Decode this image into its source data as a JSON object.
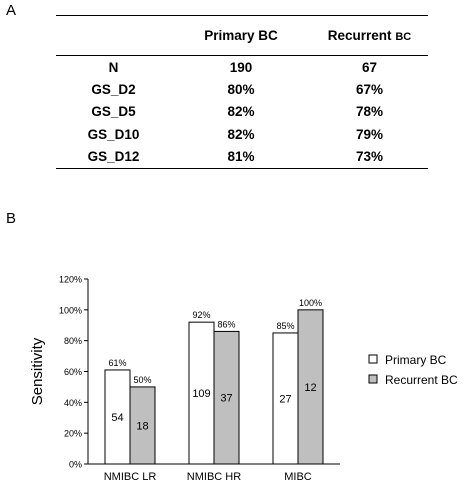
{
  "panel_a": {
    "label": "A",
    "table": {
      "columns": [
        {
          "main": "",
          "small": ""
        },
        {
          "main": "Primary BC",
          "small": ""
        },
        {
          "main": "Recurrent ",
          "small": "BC"
        }
      ],
      "rows": [
        [
          "N",
          "190",
          "67"
        ],
        [
          "GS_D2",
          "80%",
          "67%"
        ],
        [
          "GS_D5",
          "82%",
          "78%"
        ],
        [
          "GS_D10",
          "82%",
          "79%"
        ],
        [
          "GS_D12",
          "81%",
          "73%"
        ]
      ]
    }
  },
  "panel_b": {
    "label": "B"
  },
  "chart_data": {
    "type": "bar",
    "categories": [
      "NMIBC LR",
      "NMIBC HR",
      "MIBC"
    ],
    "series": [
      {
        "name": "Primary BC",
        "values": [
          61,
          92,
          85
        ],
        "value_labels": [
          "61%",
          "92%",
          "85%"
        ],
        "counts": [
          "54",
          "109",
          "27"
        ],
        "color": "#ffffff"
      },
      {
        "name": "Recurrent BC",
        "values": [
          50,
          86,
          100
        ],
        "value_labels": [
          "50%",
          "86%",
          "100%"
        ],
        "counts": [
          "18",
          "37",
          "12"
        ],
        "color": "#bfbfbf"
      }
    ],
    "ylabel": "Sensitivity",
    "ylim": [
      0,
      120
    ],
    "yticks": [
      "0%",
      "20%",
      "40%",
      "60%",
      "80%",
      "100%",
      "120%"
    ],
    "grid": false,
    "legend_position": "right"
  }
}
